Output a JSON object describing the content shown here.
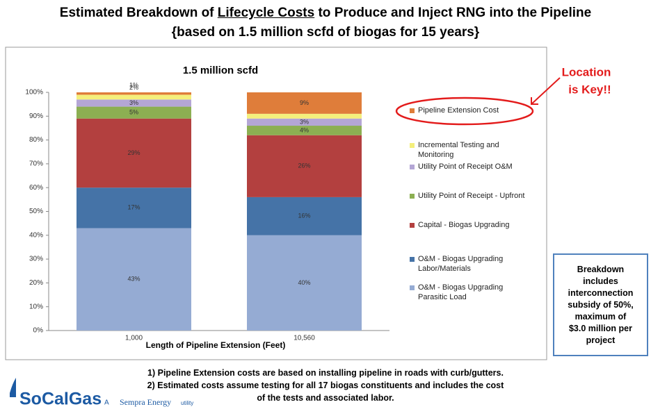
{
  "slide": {
    "title_before": "Estimated Breakdown of ",
    "title_underlined": "Lifecycle Costs",
    "title_after": " to Produce and Inject RNG into the Pipeline",
    "subtitle": "{based on 1.5 million scfd of biogas for 15 years}",
    "callout": [
      "Location",
      "is Key!!"
    ],
    "box": [
      "Breakdown",
      "includes",
      "interconnection",
      "subsidy of 50%,",
      "maximum of",
      "$3.0 million per",
      "project"
    ],
    "footnotes": [
      "1)  Pipeline Extension costs are based on installing pipeline in roads with curb/gutters.",
      "2)  Estimated costs assume testing for all 17 biogas constituents and includes the cost",
      "of the tests and associated labor."
    ],
    "logo": {
      "name": "SoCalGas",
      "prefix": "A",
      "parent": "Sempra Energy",
      "suffix": "utility"
    }
  },
  "chart_data": {
    "type": "stacked_bar",
    "title": "1.5 million scfd",
    "x_label": "Length of Pipeline Extension (Feet)",
    "categories": [
      "1,000",
      "10,560"
    ],
    "ylim": [
      0,
      100
    ],
    "yticks": [
      {
        "value": 0,
        "label": "0%"
      },
      {
        "value": 10,
        "label": "10%"
      },
      {
        "value": 20,
        "label": "20%"
      },
      {
        "value": 30,
        "label": "30%"
      },
      {
        "value": 40,
        "label": "40%"
      },
      {
        "value": 50,
        "label": "50%"
      },
      {
        "value": 60,
        "label": "60%"
      },
      {
        "value": 70,
        "label": "70%"
      },
      {
        "value": 80,
        "label": "80%"
      },
      {
        "value": 90,
        "label": "90%"
      },
      {
        "value": 100,
        "label": "100%"
      }
    ],
    "series": [
      {
        "name": "O&M - Biogas Upgrading Parasitic Load",
        "color": "#95abd3",
        "values": [
          43,
          40
        ],
        "value_labels": [
          "43%",
          "40%"
        ]
      },
      {
        "name": "O&M - Biogas Upgrading Labor/Materials",
        "color": "#4573a7",
        "values": [
          17,
          16
        ],
        "value_labels": [
          "17%",
          "16%"
        ]
      },
      {
        "name": "Capital - Biogas Upgrading",
        "color": "#b3403f",
        "values": [
          29,
          26
        ],
        "value_labels": [
          "29%",
          "26%"
        ]
      },
      {
        "name": "Utility Point of Receipt - Upfront",
        "color": "#8caf52",
        "values": [
          5,
          4
        ],
        "value_labels": [
          "5%",
          "4%"
        ]
      },
      {
        "name": "Utility Point of Receipt O&M",
        "color": "#b4a6d5",
        "values": [
          3,
          3
        ],
        "value_labels": [
          "3%",
          "3%"
        ]
      },
      {
        "name": "Incremental Testing and Monitoring",
        "color": "#f4ef7c",
        "values": [
          2,
          2
        ],
        "value_labels": [
          "2%",
          "2%"
        ]
      },
      {
        "name": "Pipeline Extension Cost",
        "color": "#df7d3a",
        "values": [
          1,
          9
        ],
        "value_labels": [
          "1%",
          "9%"
        ]
      }
    ]
  }
}
